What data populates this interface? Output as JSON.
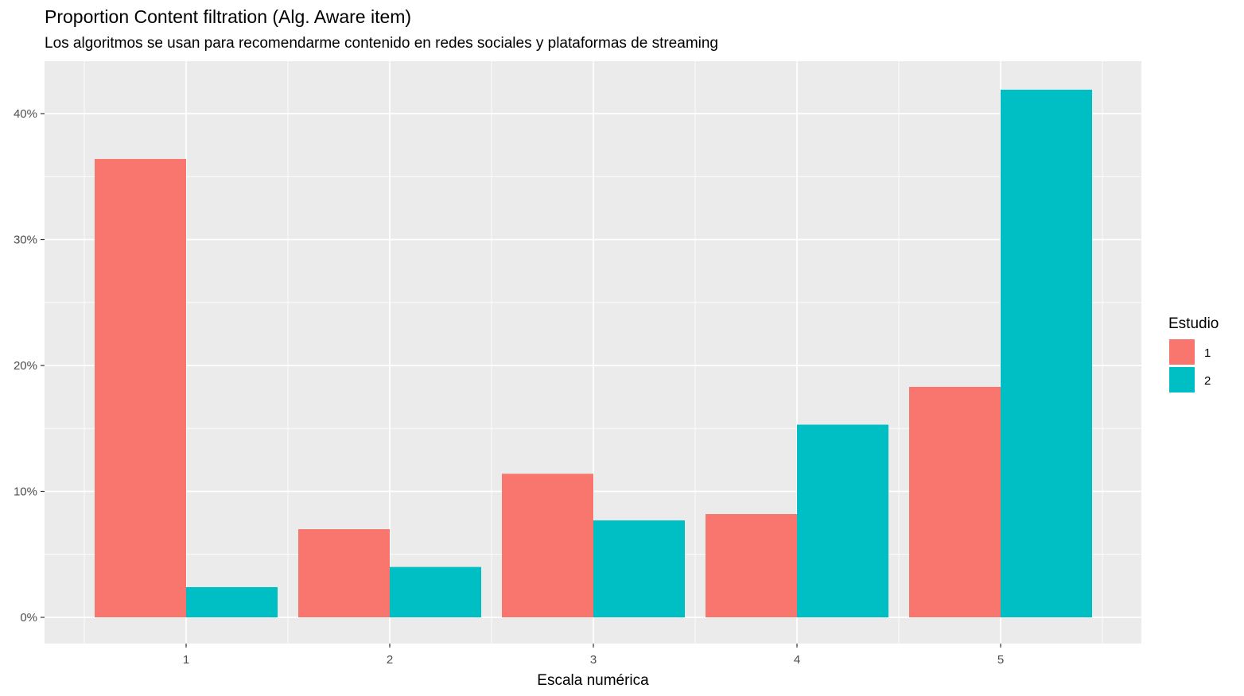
{
  "chart_data": {
    "type": "bar",
    "title": "Proportion Content filtration (Alg. Aware item)",
    "subtitle": "Los algoritmos se usan para recomendarme contenido en redes sociales y plataformas de streaming",
    "xlabel": "Escala numérica",
    "ylabel": "",
    "categories": [
      "1",
      "2",
      "3",
      "4",
      "5"
    ],
    "series": [
      {
        "name": "1",
        "color": "#F8766D",
        "values": [
          36.4,
          7.0,
          11.4,
          8.2,
          18.3
        ]
      },
      {
        "name": "2",
        "color": "#00BFC4",
        "values": [
          2.4,
          4.0,
          7.7,
          15.3,
          41.9
        ]
      }
    ],
    "ylim": [
      0,
      42
    ],
    "yticks": [
      0,
      10,
      20,
      30,
      40
    ],
    "ytick_labels": [
      "0%",
      "10%",
      "20%",
      "30%",
      "40%"
    ],
    "legend": {
      "title": "Estudio",
      "position": "right"
    },
    "grid": true
  }
}
